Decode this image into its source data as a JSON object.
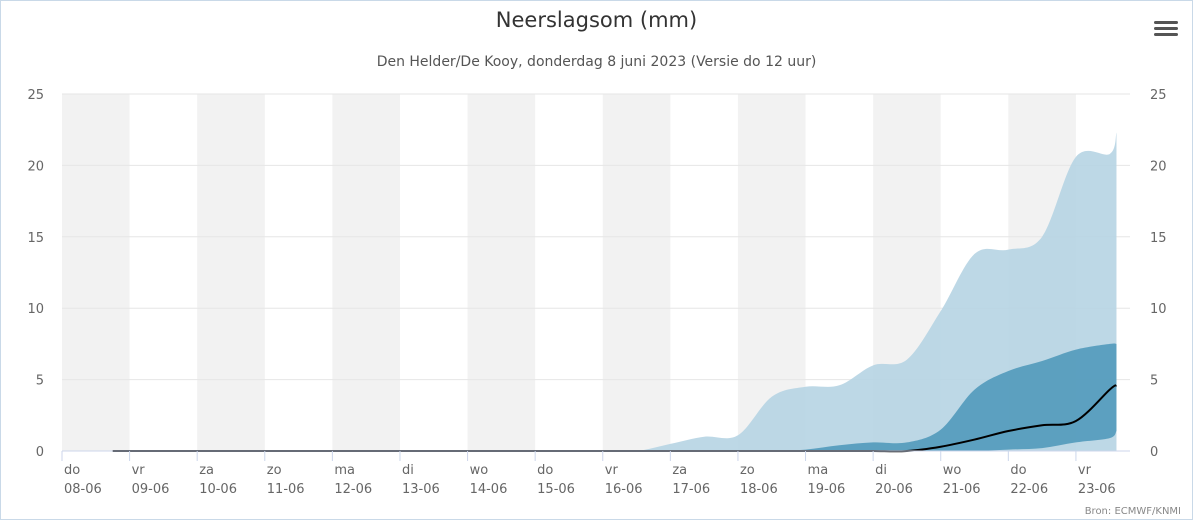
{
  "title": "Neerslagsom (mm)",
  "subtitle": "Den Helder/De Kooy, donderdag 8 juni 2023 (Versie do 12 uur)",
  "menu_icon": "hamburger-menu-icon",
  "credit": "Bron: ECMWF/KNMI",
  "colors": {
    "outer_band": "#b6d4e3",
    "inner_band": "#4b96b8",
    "median_line": "#000000",
    "weekend_shade": "#f2f2f2",
    "grid": "#e6e6e6",
    "axis_text": "#666666"
  },
  "chart_data": {
    "type": "area",
    "title": "Neerslagsom (mm)",
    "subtitle": "Den Helder/De Kooy, donderdag 8 juni 2023 (Versie do 12 uur)",
    "ylim": [
      0,
      25
    ],
    "yticks": [
      "0",
      "5",
      "10",
      "15",
      "20",
      "25"
    ],
    "y_axis_both_sides": true,
    "grid": true,
    "xlim": [
      0,
      15.8
    ],
    "day_labels": [
      {
        "day": "do",
        "date": "08-06"
      },
      {
        "day": "vr",
        "date": "09-06"
      },
      {
        "day": "za",
        "date": "10-06"
      },
      {
        "day": "zo",
        "date": "11-06"
      },
      {
        "day": "ma",
        "date": "12-06"
      },
      {
        "day": "di",
        "date": "13-06"
      },
      {
        "day": "wo",
        "date": "14-06"
      },
      {
        "day": "do",
        "date": "15-06"
      },
      {
        "day": "vr",
        "date": "16-06"
      },
      {
        "day": "za",
        "date": "17-06"
      },
      {
        "day": "zo",
        "date": "18-06"
      },
      {
        "day": "ma",
        "date": "19-06"
      },
      {
        "day": "di",
        "date": "20-06"
      },
      {
        "day": "wo",
        "date": "21-06"
      },
      {
        "day": "do",
        "date": "22-06"
      },
      {
        "day": "vr",
        "date": "23-06"
      }
    ],
    "x_days": [
      0.75,
      1,
      2,
      3,
      4,
      5,
      6,
      7,
      8,
      8.5,
      9,
      9.5,
      10,
      10.5,
      11,
      11.5,
      12,
      12.5,
      13,
      13.5,
      14,
      14.5,
      15,
      15.5,
      15.6
    ],
    "series": [
      {
        "kind": "band",
        "upper": [
          0,
          0,
          0,
          0,
          0,
          0,
          0,
          0,
          0,
          0,
          0.5,
          1,
          1.1,
          3.8,
          4.5,
          4.6,
          6,
          6.4,
          9.8,
          13.8,
          14.1,
          15,
          20.6,
          20.8,
          22.3
        ],
        "lower": [
          0,
          0,
          0,
          0,
          0,
          0,
          0,
          0,
          0,
          0,
          0,
          0,
          0,
          0,
          0,
          0,
          0,
          0,
          0,
          0,
          0,
          0,
          0,
          0,
          0
        ]
      },
      {
        "kind": "band",
        "upper": [
          0,
          0,
          0,
          0,
          0,
          0,
          0,
          0,
          0,
          0,
          0,
          0,
          0,
          0,
          0.1,
          0.4,
          0.6,
          0.6,
          1.5,
          4.3,
          5.6,
          6.3,
          7.1,
          7.5,
          7.5
        ],
        "lower": [
          0,
          0,
          0,
          0,
          0,
          0,
          0,
          0,
          0,
          0,
          0,
          0,
          0,
          0,
          0,
          0,
          0,
          0,
          0,
          0,
          0.1,
          0.2,
          0.6,
          0.9,
          1.4
        ]
      },
      {
        "kind": "median",
        "values": [
          0,
          0,
          0,
          0,
          0,
          0,
          0,
          0,
          0,
          0,
          0,
          0,
          0,
          0,
          0,
          0,
          0,
          0,
          0.3,
          0.8,
          1.4,
          1.8,
          2.1,
          4.3,
          4.6
        ]
      }
    ]
  }
}
